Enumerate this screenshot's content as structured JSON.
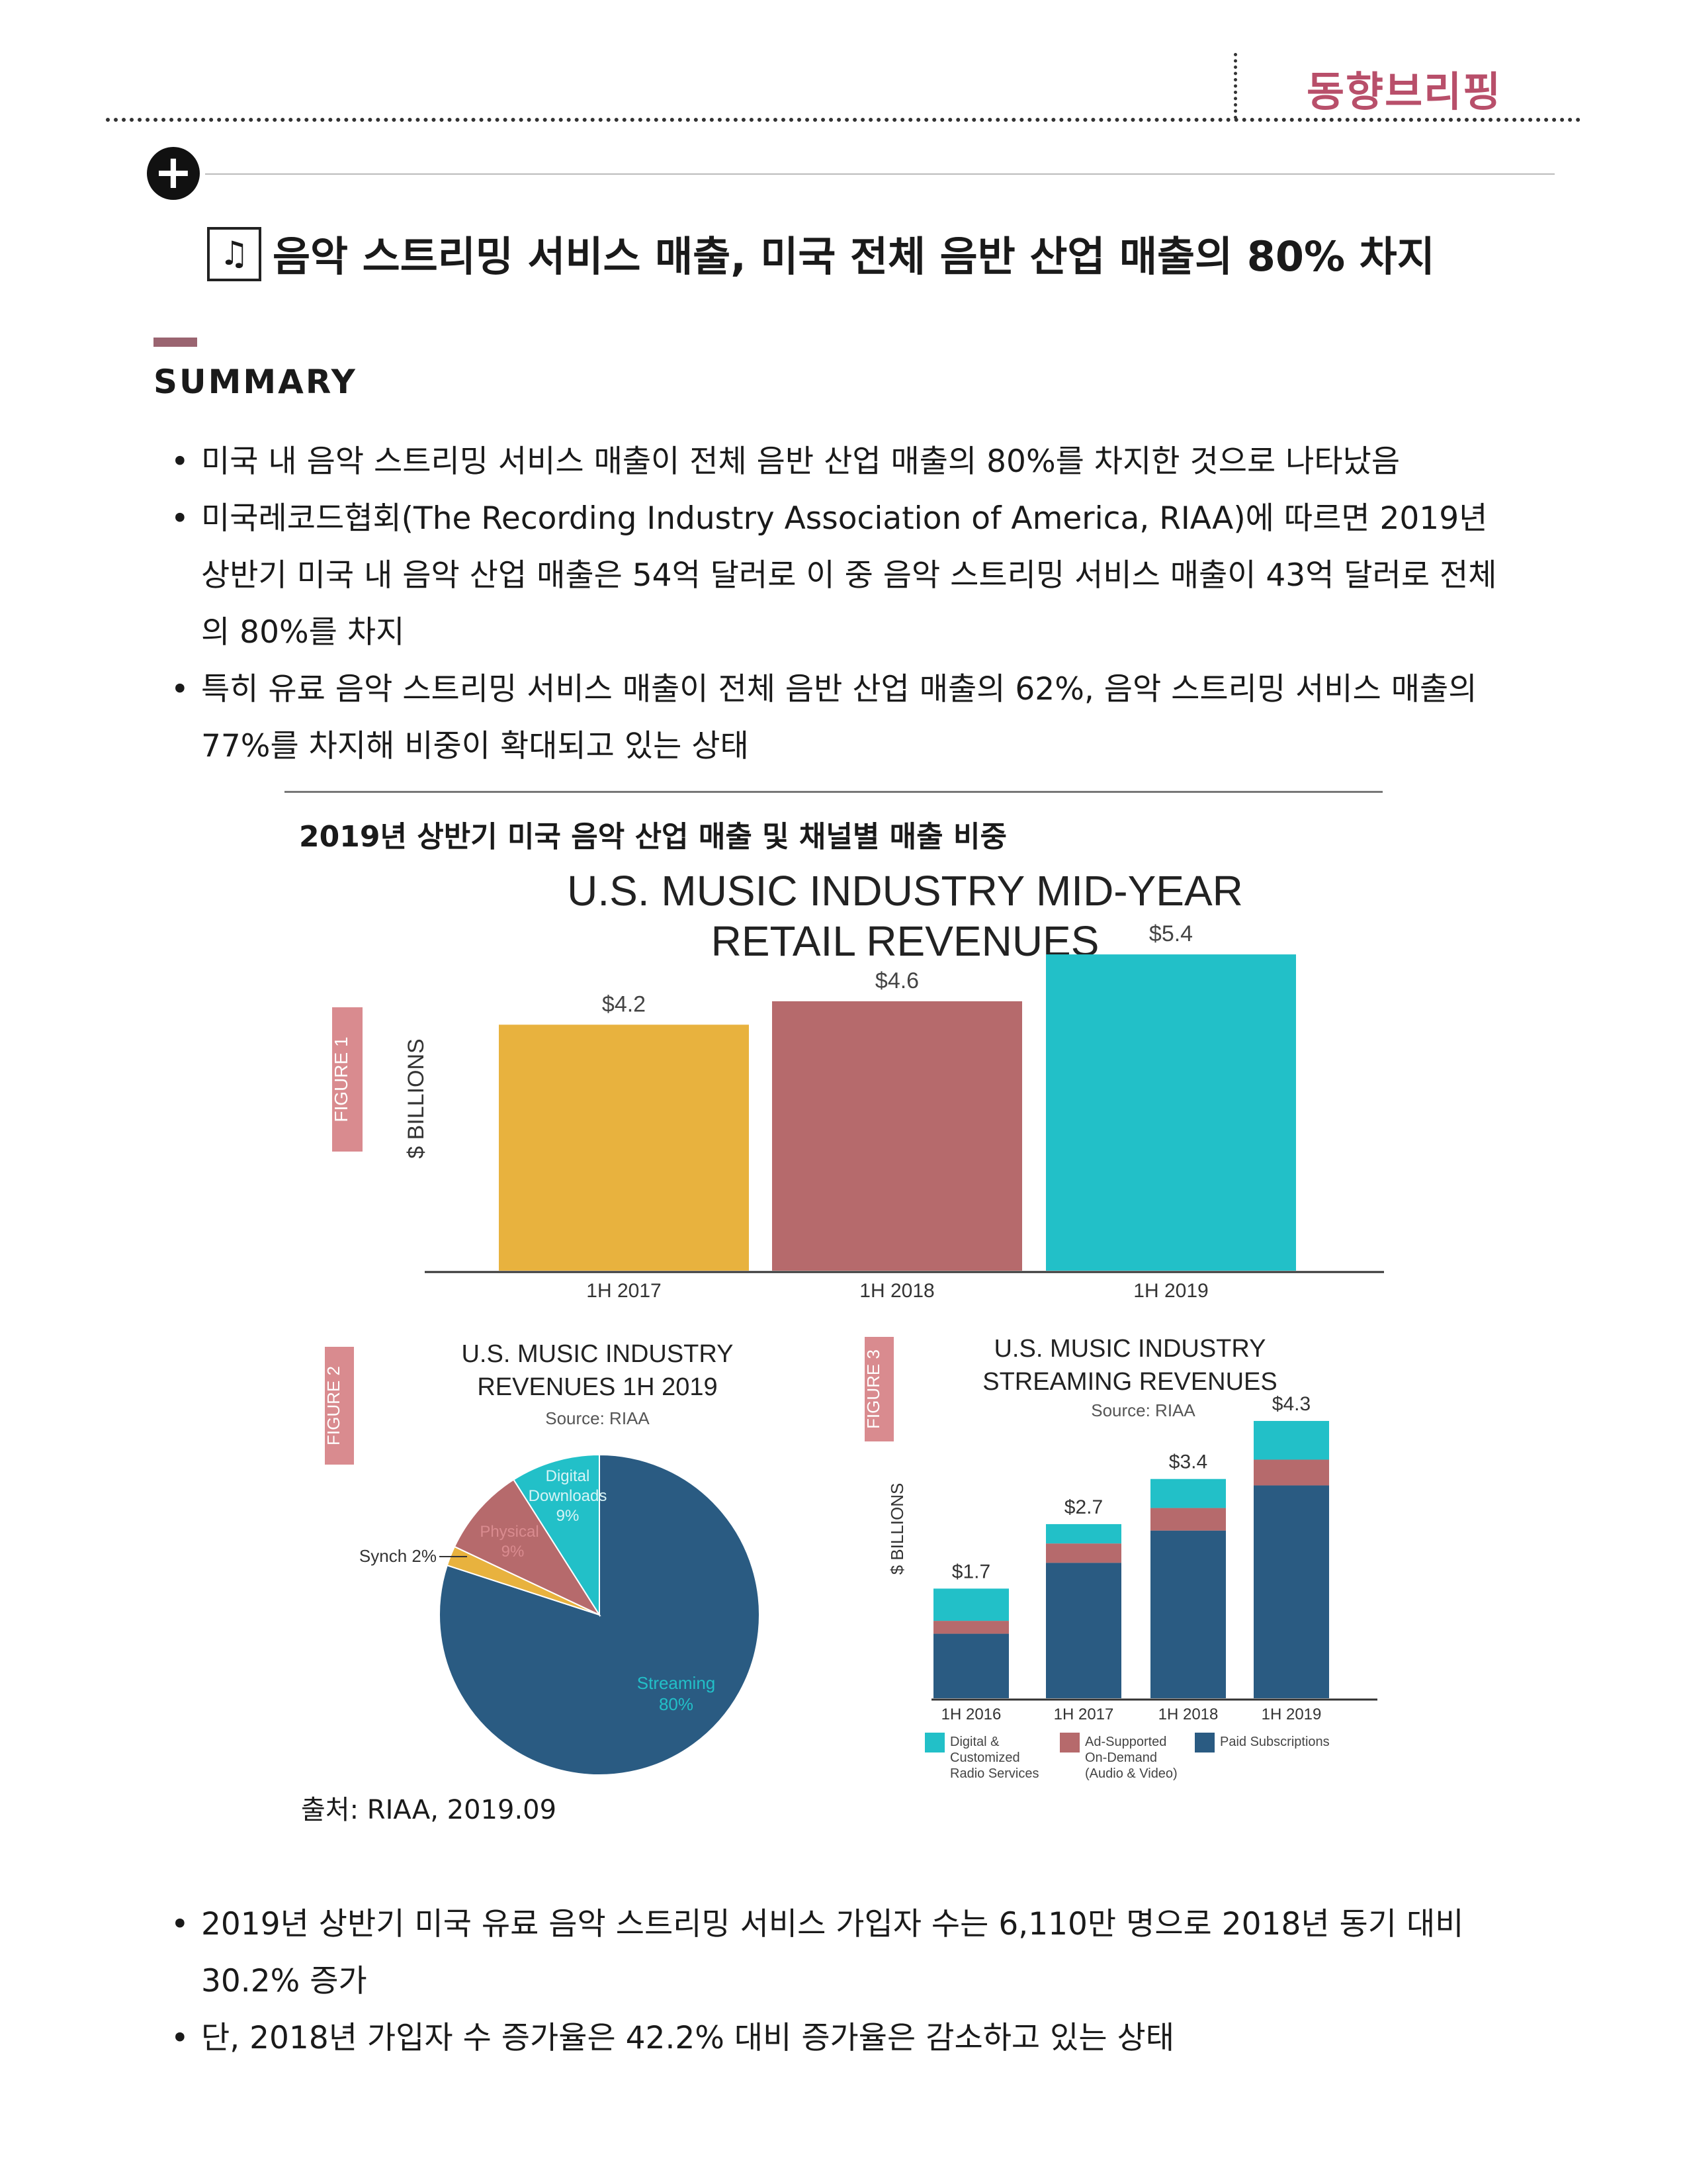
{
  "header": {
    "label": "동향브리핑"
  },
  "title": {
    "text": "음악 스트리밍 서비스 매출, 미국 전체 음반 산업 매출의 80% 차지",
    "icon": "music-note-icon"
  },
  "summary": {
    "heading": "SUMMARY",
    "bullets": [
      "미국 내 음악 스트리밍 서비스 매출이 전체 음반 산업 매출의 80%를 차지한 것으로 나타났음",
      "미국레코드협회(The Recording Industry Association of America, RIAA)에 따르면 2019년 상반기 미국 내 음악 산업 매출은 54억 달러로 이 중 음악 스트리밍 서비스 매출이 43억 달러로 전체의 80%를 차지",
      "특히 유료 음악 스트리밍 서비스 매출이 전체 음반 산업 매출의 62%, 음악 스트리밍 서비스 매출의 77%를 차지해 비중이 확대되고 있는 상태"
    ]
  },
  "chart_caption": "2019년 상반기 미국 음악 산업 매출 및 채널별 매출 비중",
  "source": "출처: RIAA, 2019.09",
  "bottom_bullets": [
    "2019년 상반기 미국 유료 음악 스트리밍 서비스 가입자 수는 6,110만 명으로 2018년 동기 대비 30.2% 증가",
    "단, 2018년 가입자 수 증가율은 42.2% 대비 증가율은 감소하고 있는 상태"
  ],
  "chart_data": [
    {
      "type": "bar",
      "figure_label": "FIGURE 1",
      "title": "U.S. MUSIC INDUSTRY MID-YEAR RETAIL REVENUES",
      "ylabel": "$ BILLIONS",
      "categories": [
        "1H 2017",
        "1H 2018",
        "1H 2019"
      ],
      "values": [
        4.2,
        4.6,
        5.4
      ],
      "data_labels": [
        "$4.2",
        "$4.6",
        "$5.4"
      ],
      "colors": [
        "#e8b23e",
        "#b66a6c",
        "#22c0c8"
      ],
      "ylim": [
        0,
        5.6
      ]
    },
    {
      "type": "pie",
      "figure_label": "FIGURE 2",
      "title": "U.S. MUSIC INDUSTRY REVENUES 1H 2019",
      "subtitle": "Source: RIAA",
      "slices": [
        {
          "label": "Streaming",
          "value": 80,
          "pct_label": "80%",
          "color": "#2a5b82"
        },
        {
          "label": "Synch 2%",
          "value": 2,
          "color": "#e8b23e"
        },
        {
          "label": "Physical",
          "value": 9,
          "pct_label": "9%",
          "color": "#b66a6c"
        },
        {
          "label": "Digital Downloads",
          "value": 9,
          "pct_label": "9%",
          "color": "#22c0c8"
        }
      ]
    },
    {
      "type": "bar",
      "stacked": true,
      "figure_label": "FIGURE 3",
      "title": "U.S. MUSIC INDUSTRY STREAMING REVENUES",
      "subtitle": "Source: RIAA",
      "ylabel": "$ BILLIONS",
      "categories": [
        "1H 2016",
        "1H 2017",
        "1H 2018",
        "1H 2019"
      ],
      "totals": [
        "$1.7",
        "$2.7",
        "$3.4",
        "$4.3"
      ],
      "series": [
        {
          "name": "Paid Subscriptions",
          "values": [
            1.0,
            2.1,
            2.6,
            3.3
          ],
          "color": "#2a5b82"
        },
        {
          "name": "Ad-Supported On-Demand (Audio & Video)",
          "values": [
            0.2,
            0.3,
            0.35,
            0.4
          ],
          "color": "#b66a6c"
        },
        {
          "name": "Digital & Customized Radio Services",
          "values": [
            0.5,
            0.3,
            0.45,
            0.6
          ],
          "color": "#22c0c8"
        }
      ],
      "legend": [
        "Digital & Customized Radio Services",
        "Ad-Supported On-Demand (Audio & Video)",
        "Paid Subscriptions"
      ],
      "ylim": [
        0,
        4.5
      ]
    }
  ]
}
